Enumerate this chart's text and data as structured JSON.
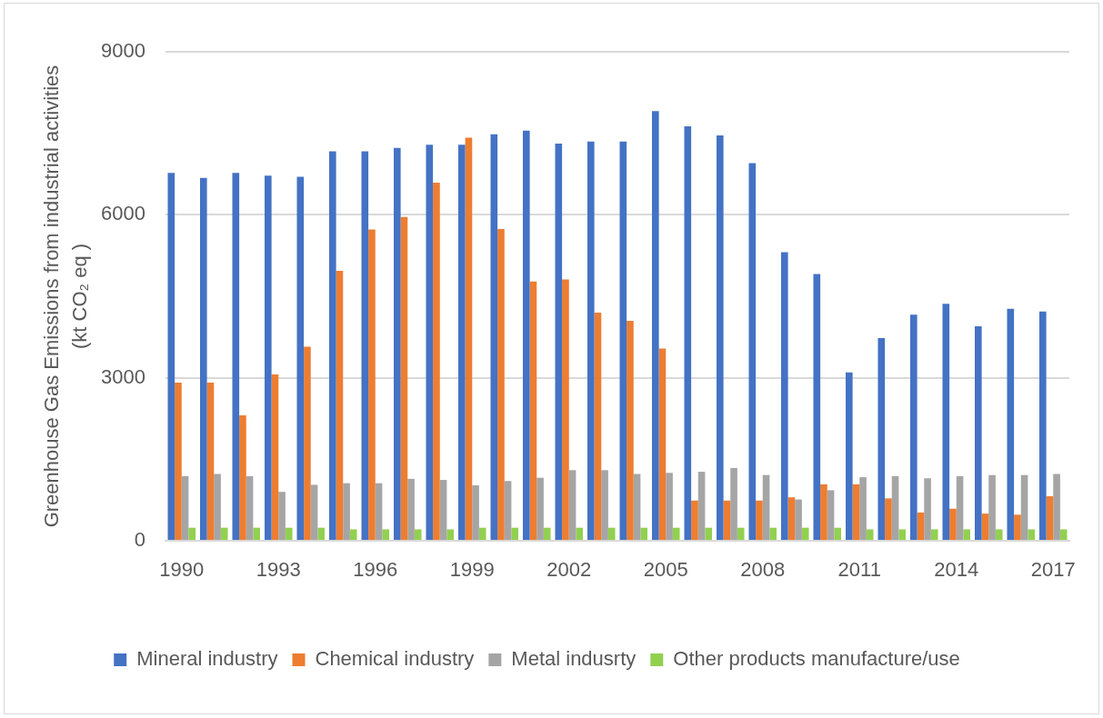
{
  "chart_data": {
    "type": "bar",
    "categories": [
      "1990",
      null,
      null,
      "1993",
      null,
      null,
      "1996",
      null,
      null,
      "1999",
      null,
      null,
      "2002",
      null,
      null,
      "2005",
      null,
      null,
      "2008",
      null,
      null,
      "2011",
      null,
      null,
      "2014",
      null,
      null,
      "2017"
    ],
    "series": [
      {
        "name": "Mineral industry",
        "color": "#4472c4",
        "values": [
          6770,
          6680,
          6770,
          6720,
          6700,
          7170,
          7170,
          7230,
          7290,
          7290,
          7480,
          7550,
          7310,
          7350,
          7350,
          7910,
          7630,
          7460,
          6950,
          5310,
          4910,
          3100,
          3730,
          4160,
          4360,
          3950,
          4270,
          4220
        ]
      },
      {
        "name": "Chemical industry",
        "color": "#ed7d31",
        "values": [
          2910,
          2910,
          2310,
          3060,
          3570,
          4970,
          5730,
          5960,
          6590,
          7420,
          5740,
          4770,
          4810,
          4200,
          4050,
          3540,
          740,
          740,
          740,
          800,
          1040,
          1040,
          780,
          520,
          590,
          500,
          480,
          820
        ]
      },
      {
        "name": "Metal indusrty",
        "color": "#a5a5a5",
        "values": [
          1190,
          1230,
          1190,
          900,
          1030,
          1060,
          1060,
          1140,
          1120,
          1020,
          1100,
          1160,
          1300,
          1300,
          1230,
          1250,
          1270,
          1340,
          1210,
          760,
          930,
          1170,
          1190,
          1150,
          1190,
          1210,
          1210,
          1230
        ]
      },
      {
        "name": "Other products manufacture/use",
        "color": "#92d050",
        "values": [
          240,
          240,
          240,
          240,
          240,
          210,
          210,
          210,
          210,
          240,
          240,
          240,
          240,
          240,
          240,
          240,
          240,
          240,
          240,
          240,
          240,
          210,
          210,
          210,
          210,
          210,
          210,
          210
        ]
      }
    ],
    "ylabel": "Greenhouse Gas Emissions from industrial activities\n(kt CO₂ eq )",
    "ylim": [
      0,
      9000
    ],
    "yticks": [
      0,
      3000,
      6000,
      9000
    ],
    "grid": "y",
    "legend": "bottom"
  }
}
